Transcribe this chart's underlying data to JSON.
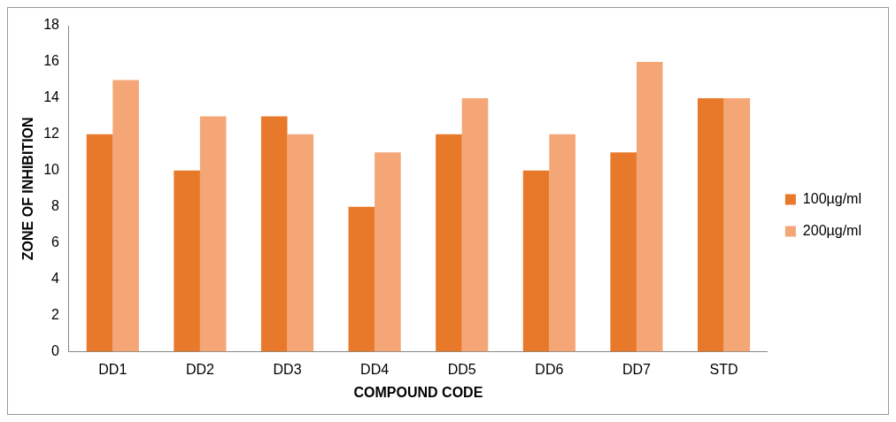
{
  "chart_data": {
    "type": "bar",
    "xlabel": "COMPOUND CODE",
    "ylabel": "ZONE OF INHIBITION",
    "categories": [
      "DD1",
      "DD2",
      "DD3",
      "DD4",
      "DD5",
      "DD6",
      "DD7",
      "STD"
    ],
    "series": [
      {
        "name": "100µg/ml",
        "color": "#e8792a",
        "values": [
          12,
          10,
          13,
          8,
          12,
          10,
          11,
          14
        ]
      },
      {
        "name": "200µg/ml",
        "color": "#f4a676",
        "values": [
          15,
          13,
          12,
          11,
          14,
          12,
          16,
          14
        ]
      }
    ],
    "ylim": [
      0,
      18
    ],
    "yticks": [
      0,
      2,
      4,
      6,
      8,
      10,
      12,
      14,
      16,
      18
    ],
    "grid": false,
    "legend": "right"
  }
}
